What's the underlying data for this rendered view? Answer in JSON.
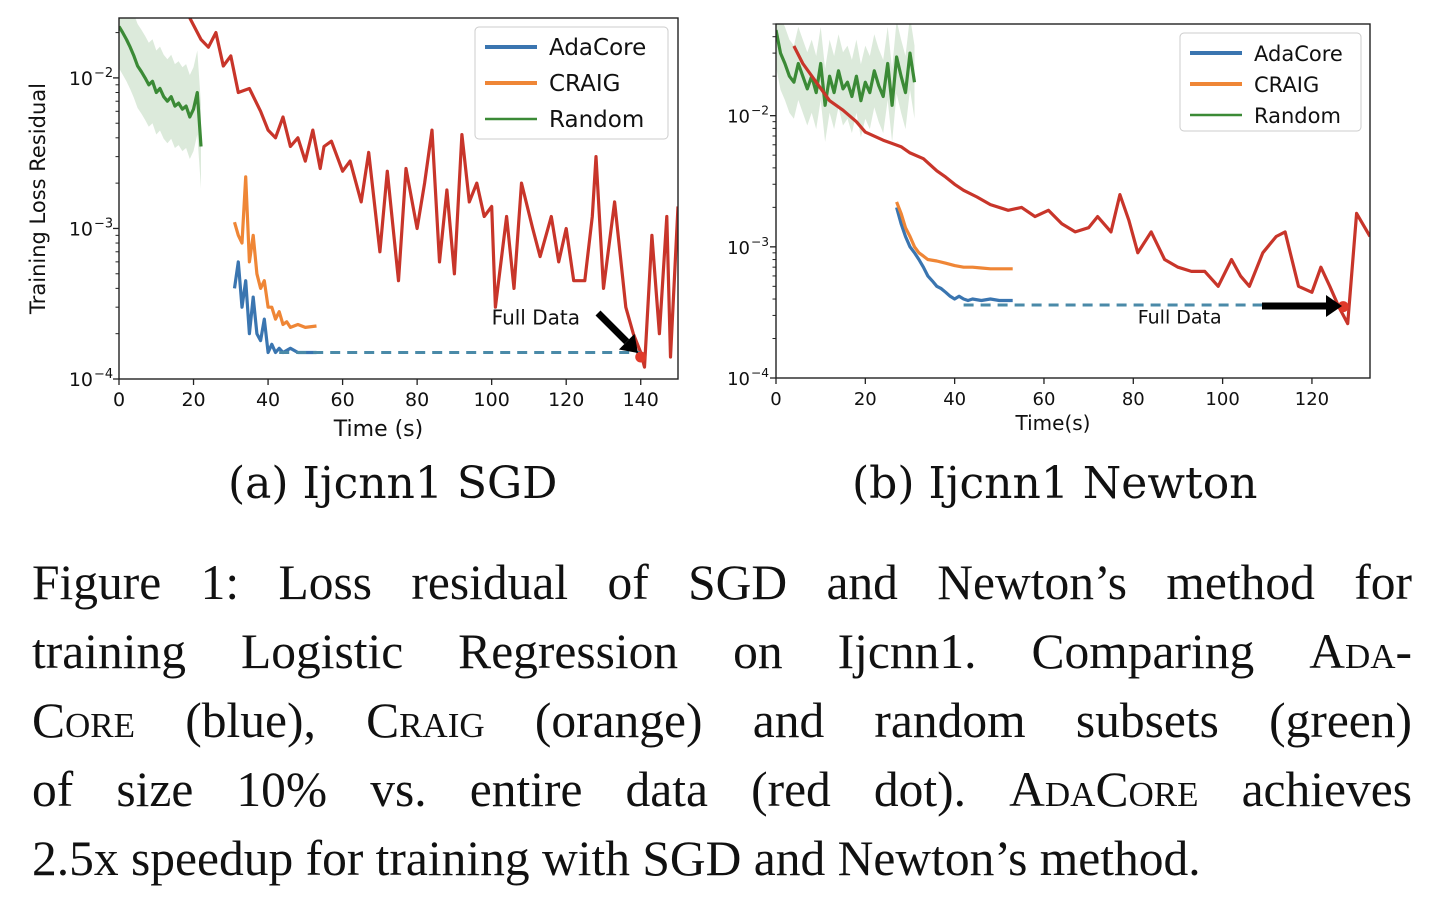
{
  "chart_data": [
    {
      "type": "line",
      "title": "",
      "xlabel": "Time (s)",
      "ylabel": "Training Loss Residual",
      "y_scale": "log",
      "xlim": [
        0,
        150
      ],
      "ylim": [
        0.0001,
        0.025
      ],
      "x_ticks": [
        0,
        20,
        40,
        60,
        80,
        100,
        120,
        140
      ],
      "x_tick_labels": [
        "0",
        "20",
        "40",
        "60",
        "80",
        "100",
        "120",
        "140"
      ],
      "y_ticks": [
        0.0001,
        0.001,
        0.01
      ],
      "y_tick_labels": [
        {
          "base": "10",
          "exp": "−4"
        },
        {
          "base": "10",
          "exp": "−3"
        },
        {
          "base": "10",
          "exp": "−2"
        }
      ],
      "legend": {
        "position": "top-right",
        "entries": [
          "AdaCore",
          "CRAIG",
          "Random"
        ]
      },
      "grid": false,
      "series": [
        {
          "name": "AdaCore",
          "color": "#3a75b0",
          "x": [
            31,
            32,
            33,
            34,
            35,
            36,
            37,
            38,
            39,
            40,
            41,
            42,
            43,
            44,
            46,
            48,
            50,
            53
          ],
          "y": [
            0.0004,
            0.0006,
            0.0003,
            0.00045,
            0.0002,
            0.00035,
            0.0002,
            0.00018,
            0.00025,
            0.00015,
            0.00017,
            0.00015,
            0.00016,
            0.00015,
            0.00016,
            0.00015,
            0.00015,
            0.00015
          ]
        },
        {
          "name": "CRAIG",
          "color": "#ef8636",
          "x": [
            31,
            32,
            33,
            34,
            35,
            36,
            37,
            38,
            39,
            40,
            41,
            42,
            43,
            44,
            45,
            46,
            48,
            50,
            53
          ],
          "y": [
            0.0011,
            0.0009,
            0.0008,
            0.0022,
            0.0006,
            0.0009,
            0.0005,
            0.0004,
            0.00045,
            0.0003,
            0.0003,
            0.00025,
            0.00028,
            0.00023,
            0.00024,
            0.00022,
            0.00023,
            0.00022,
            0.000225
          ]
        },
        {
          "name": "Random",
          "color": "#3b8a36",
          "x": [
            0,
            1,
            2,
            3,
            4,
            5,
            6,
            7,
            8,
            9,
            10,
            11,
            12,
            13,
            14,
            15,
            16,
            17,
            18,
            19,
            20,
            21,
            22
          ],
          "y": [
            0.022,
            0.02,
            0.018,
            0.016,
            0.014,
            0.012,
            0.011,
            0.01,
            0.009,
            0.0095,
            0.008,
            0.0085,
            0.0075,
            0.007,
            0.0075,
            0.0065,
            0.0068,
            0.0062,
            0.0065,
            0.0055,
            0.0062,
            0.008,
            0.0035
          ],
          "band": true
        },
        {
          "name": "Full Data",
          "color": "#c8352a",
          "x": [
            19,
            22,
            24,
            26,
            28,
            30,
            32,
            35,
            38,
            40,
            42,
            44,
            46,
            48,
            50,
            52,
            54,
            55,
            57,
            60,
            62,
            65,
            67,
            70,
            72,
            75,
            77,
            80,
            82,
            84,
            86,
            88,
            90,
            92,
            94,
            96,
            98,
            100,
            101,
            104,
            106,
            108,
            111,
            113,
            116,
            118,
            120,
            122,
            125,
            127,
            128,
            130,
            133,
            136,
            138,
            140,
            141,
            143,
            145,
            147,
            148,
            150
          ],
          "y": [
            0.025,
            0.018,
            0.016,
            0.02,
            0.012,
            0.014,
            0.008,
            0.0085,
            0.006,
            0.0045,
            0.004,
            0.0055,
            0.0035,
            0.004,
            0.0028,
            0.0045,
            0.0025,
            0.0035,
            0.0038,
            0.0024,
            0.0028,
            0.0015,
            0.0032,
            0.0007,
            0.0024,
            0.00045,
            0.0025,
            0.001,
            0.002,
            0.0045,
            0.0006,
            0.0018,
            0.0005,
            0.0042,
            0.0015,
            0.002,
            0.0012,
            0.0014,
            0.0003,
            0.0012,
            0.0004,
            0.002,
            0.001,
            0.00065,
            0.0012,
            0.0006,
            0.001,
            0.00045,
            0.00045,
            0.0012,
            0.003,
            0.0004,
            0.0015,
            0.0003,
            0.0002,
            0.00015,
            0.00012,
            0.0009,
            0.0002,
            0.0012,
            0.00014,
            0.0014
          ]
        },
        {
          "name": "Full Data reference",
          "color": "#4a8aa8",
          "dashed": true,
          "x": [
            43,
            140
          ],
          "y": [
            0.00015,
            0.00015
          ]
        }
      ],
      "marker": {
        "x": 140,
        "y": 0.00014,
        "color": "#e03a2a"
      },
      "annotations": [
        {
          "text": "Full Data",
          "x": 100,
          "y": 0.00023
        }
      ]
    },
    {
      "type": "line",
      "title": "",
      "xlabel": "Time(s)",
      "ylabel": "",
      "y_scale": "log",
      "xlim": [
        0,
        133
      ],
      "ylim": [
        0.0001,
        0.05
      ],
      "x_ticks": [
        0,
        20,
        40,
        60,
        80,
        100,
        120
      ],
      "x_tick_labels": [
        "0",
        "20",
        "40",
        "60",
        "80",
        "100",
        "120"
      ],
      "y_ticks": [
        0.0001,
        0.001,
        0.01
      ],
      "y_tick_labels": [
        {
          "base": "10",
          "exp": "−4"
        },
        {
          "base": "10",
          "exp": "−3"
        },
        {
          "base": "10",
          "exp": "−2"
        }
      ],
      "legend": {
        "position": "top-right",
        "entries": [
          "AdaCore",
          "CRAIG",
          "Random"
        ]
      },
      "grid": false,
      "series": [
        {
          "name": "AdaCore",
          "color": "#3a75b0",
          "x": [
            27,
            28,
            29,
            30,
            31,
            32,
            33,
            34,
            35,
            36,
            37,
            38,
            39,
            40,
            41,
            42,
            43,
            44,
            46,
            48,
            50,
            53
          ],
          "y": [
            0.002,
            0.0015,
            0.0012,
            0.001,
            0.0009,
            0.0008,
            0.0007,
            0.0006,
            0.00055,
            0.0005,
            0.00048,
            0.00045,
            0.00042,
            0.0004,
            0.00042,
            0.0004,
            0.00039,
            0.0004,
            0.00039,
            0.0004,
            0.00039,
            0.00039
          ]
        },
        {
          "name": "CRAIG",
          "color": "#ef8636",
          "x": [
            27,
            28,
            29,
            30,
            31,
            32,
            33,
            34,
            36,
            38,
            40,
            42,
            44,
            46,
            48,
            50,
            53
          ],
          "y": [
            0.0022,
            0.0018,
            0.0014,
            0.0012,
            0.001,
            0.0009,
            0.00085,
            0.0008,
            0.00078,
            0.00075,
            0.00072,
            0.0007,
            0.0007,
            0.00069,
            0.00068,
            0.00068,
            0.00068
          ]
        },
        {
          "name": "Random",
          "color": "#3b8a36",
          "x": [
            0,
            1,
            2,
            3,
            4,
            5,
            6,
            7,
            8,
            9,
            10,
            11,
            12,
            13,
            14,
            15,
            16,
            17,
            18,
            19,
            20,
            21,
            22,
            23,
            24,
            25,
            26,
            27,
            28,
            29,
            30,
            31
          ],
          "y": [
            0.045,
            0.03,
            0.025,
            0.02,
            0.018,
            0.025,
            0.02,
            0.016,
            0.02,
            0.015,
            0.025,
            0.012,
            0.02,
            0.015,
            0.022,
            0.016,
            0.018,
            0.014,
            0.02,
            0.013,
            0.018,
            0.015,
            0.022,
            0.017,
            0.014,
            0.025,
            0.012,
            0.028,
            0.02,
            0.015,
            0.03,
            0.018
          ],
          "band": true
        },
        {
          "name": "Full Data",
          "color": "#c8352a",
          "x": [
            4,
            6,
            9,
            12,
            15,
            18,
            20,
            24,
            28,
            30,
            33,
            36,
            38,
            40,
            42,
            45,
            48,
            52,
            55,
            58,
            61,
            64,
            67,
            70,
            72,
            75,
            77,
            79,
            81,
            84,
            87,
            90,
            93,
            96,
            99,
            102,
            104,
            106,
            109,
            112,
            114,
            117,
            120,
            122,
            124,
            126,
            128,
            130,
            133
          ],
          "y": [
            0.034,
            0.025,
            0.018,
            0.013,
            0.011,
            0.009,
            0.0075,
            0.0065,
            0.0058,
            0.0052,
            0.0047,
            0.0038,
            0.0034,
            0.003,
            0.0027,
            0.0024,
            0.0021,
            0.0019,
            0.002,
            0.0017,
            0.0019,
            0.0015,
            0.0013,
            0.0014,
            0.0017,
            0.0013,
            0.0025,
            0.0016,
            0.0009,
            0.0013,
            0.0008,
            0.0007,
            0.00065,
            0.00065,
            0.0005,
            0.0008,
            0.0006,
            0.0005,
            0.0009,
            0.0012,
            0.0013,
            0.0005,
            0.00045,
            0.0007,
            0.0005,
            0.00035,
            0.00026,
            0.0018,
            0.0012
          ]
        },
        {
          "name": "Full Data reference",
          "color": "#4a8aa8",
          "dashed": true,
          "x": [
            42,
            128
          ],
          "y": [
            0.00036,
            0.00036
          ]
        }
      ],
      "marker": {
        "x": 127,
        "y": 0.00035,
        "color": "#e03a2a"
      },
      "annotations": [
        {
          "text": "Full Data",
          "x": 81,
          "y": 0.00026
        }
      ]
    }
  ],
  "subcaptions": [
    "(a) Ijcnn1 SGD",
    "(b) Ijcnn1 Newton"
  ],
  "caption": {
    "line1": "Figure 1: Loss residual of SGD and Newton’s method for",
    "line2a": "training Logistic Regression on Ijcnn1. Comparing ",
    "line2b": "Ada-",
    "line3a": "Core",
    "line3b": " (blue), ",
    "line3c": "Craig",
    "line3d": " (orange) and random subsets (green)",
    "line4a": "of size 10% vs. entire data (red dot). ",
    "line4b": "AdaCore",
    "line4c": " achieves",
    "line5": "2.5x speedup for training with SGD and Newton’s method."
  }
}
